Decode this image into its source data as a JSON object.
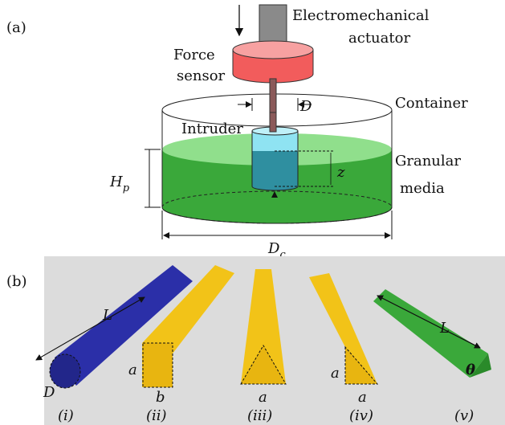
{
  "panel_a": {
    "label": "(a)",
    "actuator": [
      "Electromechanical",
      "actuator"
    ],
    "sensor": [
      "Force",
      "sensor"
    ],
    "container": "Container",
    "intruder": "Intruder",
    "diameter": "D",
    "depth": "z",
    "media": [
      "Granular",
      "media"
    ],
    "height": {
      "symbol": "H",
      "sub": "p"
    },
    "container_diameter": {
      "symbol": "D",
      "sub": "c"
    }
  },
  "panel_b": {
    "label": "(b)",
    "annotations": {
      "length_1": "L",
      "diameter": "D",
      "side_ii": "a",
      "side_b": "b",
      "side_iii": "a",
      "side_iv_1": "a",
      "side_iv_2": "a",
      "length_2": "L",
      "angle": "θ"
    },
    "captions": [
      "(i)",
      "(ii)",
      "(iii)",
      "(iv)",
      "(v)"
    ]
  }
}
